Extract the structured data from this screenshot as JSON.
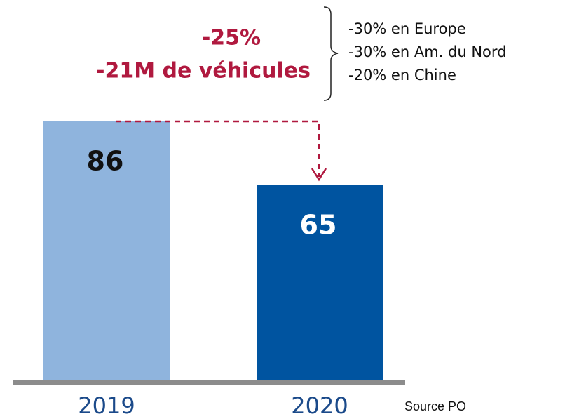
{
  "chart_data": {
    "type": "bar",
    "categories": [
      "2019",
      "2020"
    ],
    "values": [
      86,
      65
    ],
    "colors": [
      "#8fb4dd",
      "#0054a0"
    ],
    "value_label_colors": [
      "#111111",
      "#ffffff"
    ],
    "annotations": [
      "-25%",
      "-21M de véhicules"
    ],
    "breakdown": [
      "-30% en Europe",
      "-30% en Am. du Nord",
      "-20% en Chine"
    ],
    "source": "Source PO"
  }
}
